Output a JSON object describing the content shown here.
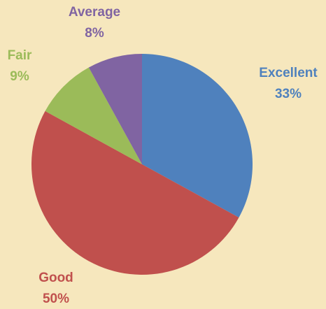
{
  "chart_data": {
    "type": "pie",
    "categories": [
      "Excellent",
      "Good",
      "Fair",
      "Average"
    ],
    "values": [
      33,
      50,
      9,
      8
    ],
    "value_labels": [
      "33%",
      "50%",
      "9%",
      "8%"
    ],
    "colors": [
      "#4f81bd",
      "#c0504d",
      "#9bbb59",
      "#8064a2"
    ]
  }
}
